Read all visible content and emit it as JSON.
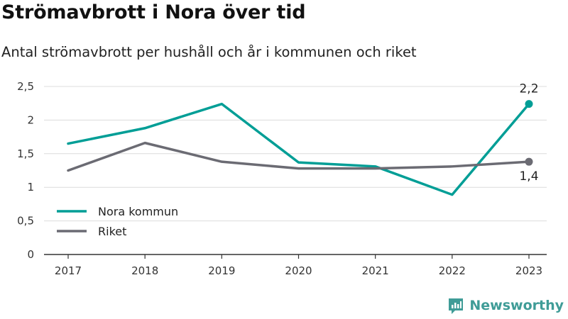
{
  "header": {
    "title": "Strömavbrott i Nora över tid",
    "subtitle": "Antal strömavbrott per hushåll och år i kommunen och riket"
  },
  "brand": {
    "name": "Newsworthy",
    "icon": "newsworthy-logo-icon",
    "color": "#3f9c97"
  },
  "chart_data": {
    "type": "line",
    "x": [
      "2017",
      "2018",
      "2019",
      "2020",
      "2021",
      "2022",
      "2023"
    ],
    "ylim": [
      0,
      2.5
    ],
    "yticks": [
      0,
      0.5,
      1,
      1.5,
      2,
      2.5
    ],
    "ytick_labels": [
      "0",
      "0,5",
      "1",
      "1,5",
      "2",
      "2,5"
    ],
    "grid": true,
    "legend_position": "bottom-left",
    "series": [
      {
        "name": "Nora kommun",
        "color": "#009e96",
        "values": [
          1.65,
          1.88,
          2.24,
          1.37,
          1.31,
          0.89,
          2.24
        ],
        "end_label": "2,2"
      },
      {
        "name": "Riket",
        "color": "#6b6b73",
        "values": [
          1.25,
          1.66,
          1.38,
          1.28,
          1.28,
          1.31,
          1.38
        ],
        "end_label": "1,4"
      }
    ]
  }
}
